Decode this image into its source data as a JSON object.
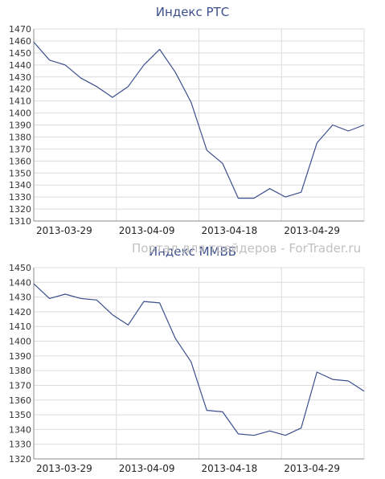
{
  "watermark": "Портал для трейдеров - ForTrader.ru",
  "chart_data": [
    {
      "type": "line",
      "title": "Индекс РТС",
      "x_tick_labels": [
        "2013-03-29",
        "2013-04-09",
        "2013-04-18",
        "2013-04-29"
      ],
      "y_ticks": [
        1310,
        1320,
        1330,
        1340,
        1350,
        1360,
        1370,
        1380,
        1390,
        1400,
        1410,
        1420,
        1430,
        1440,
        1450,
        1460,
        1470
      ],
      "ylim": [
        1310,
        1470
      ],
      "grid": true,
      "series": [
        {
          "values": [
            1459,
            1444,
            1440,
            1429,
            1422,
            1413,
            1422,
            1440,
            1453,
            1434,
            1409,
            1369,
            1358,
            1329,
            1329,
            1337,
            1330,
            1334,
            1375,
            1390,
            1385,
            1390
          ]
        }
      ],
      "line_color": "#3c4f8c"
    },
    {
      "type": "line",
      "title": "Индекс ММВБ",
      "x_tick_labels": [
        "2013-03-29",
        "2013-04-09",
        "2013-04-18",
        "2013-04-29"
      ],
      "y_ticks": [
        1320,
        1330,
        1340,
        1350,
        1360,
        1370,
        1380,
        1390,
        1400,
        1410,
        1420,
        1430,
        1440,
        1450
      ],
      "ylim": [
        1320,
        1450
      ],
      "grid": true,
      "series": [
        {
          "values": [
            1439,
            1429,
            1432,
            1429,
            1428,
            1418,
            1411,
            1427,
            1426,
            1402,
            1386,
            1353,
            1352,
            1337,
            1336,
            1339,
            1336,
            1341,
            1379,
            1374,
            1373,
            1366
          ]
        }
      ],
      "line_color": "#3c4f8c"
    }
  ]
}
